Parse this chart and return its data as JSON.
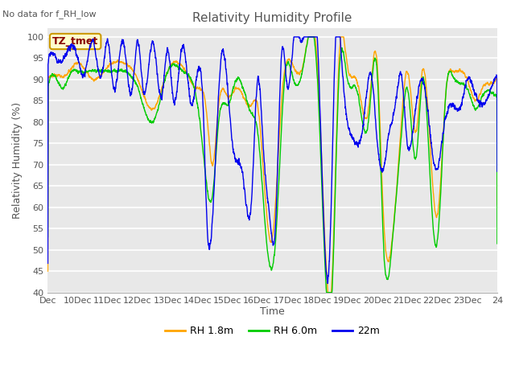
{
  "title": "Relativity Humidity Profile",
  "subtitle": "No data for f_RH_low",
  "xlabel": "Time",
  "ylabel": "Relativity Humidity (%)",
  "ylim": [
    40,
    102
  ],
  "yticks": [
    40,
    45,
    50,
    55,
    60,
    65,
    70,
    75,
    80,
    85,
    90,
    95,
    100
  ],
  "xtick_labels": [
    "Dec",
    "10Dec",
    "11Dec",
    "12Dec",
    "13Dec",
    "14Dec",
    "15Dec",
    "16Dec",
    "17Dec",
    "18Dec",
    "19Dec",
    "20Dec",
    "21Dec",
    "22Dec",
    "23Dec",
    "24"
  ],
  "colors": {
    "rh18": "#FFA500",
    "rh60": "#00CC00",
    "rh22m": "#0000EE"
  },
  "legend_labels": [
    "RH 1.8m",
    "RH 6.0m",
    "22m"
  ],
  "tz_label": "TZ_tmet",
  "plot_bg": "#E8E8E8",
  "fig_bg": "#FFFFFF",
  "grid_color": "#FFFFFF",
  "annotation_bg": "#FFFFCC",
  "annotation_border": "#CC9900",
  "n_days": 15,
  "n_points": 3600
}
